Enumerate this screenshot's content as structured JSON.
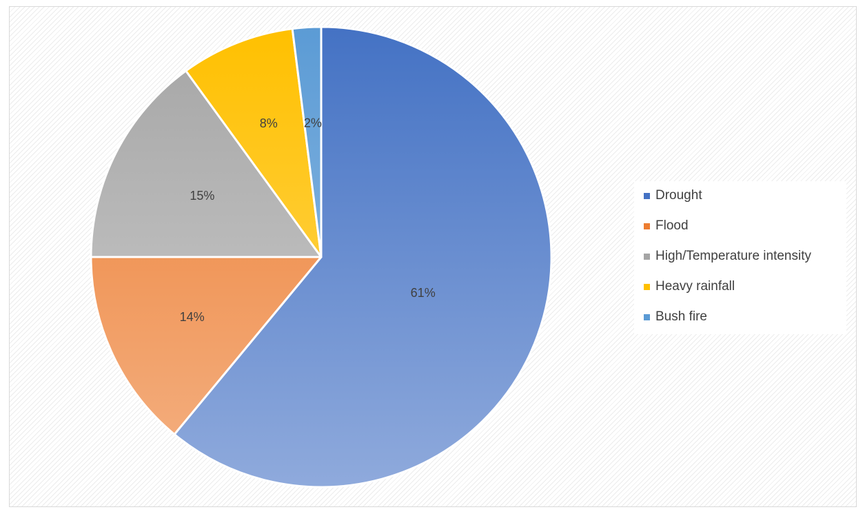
{
  "chart_data": {
    "type": "pie",
    "title": "",
    "slices": [
      {
        "label": "Drought",
        "value": 61,
        "display": "61%",
        "color": "#4472c4",
        "color_light": "#8faadc"
      },
      {
        "label": "Flood",
        "value": 14,
        "display": "14%",
        "color": "#ed7d31",
        "color_light": "#f4b183"
      },
      {
        "label": "High/Temperature intensity",
        "value": 15,
        "display": "15%",
        "color": "#a5a5a5",
        "color_light": "#d0d0d0"
      },
      {
        "label": "Heavy rainfall",
        "value": 8,
        "display": "8%",
        "color": "#ffc000",
        "color_light": "#ffd966"
      },
      {
        "label": "Bush fire",
        "value": 2,
        "display": "2%",
        "color": "#5b9bd5",
        "color_light": "#9dc3e6"
      }
    ],
    "legend_position": "right"
  }
}
